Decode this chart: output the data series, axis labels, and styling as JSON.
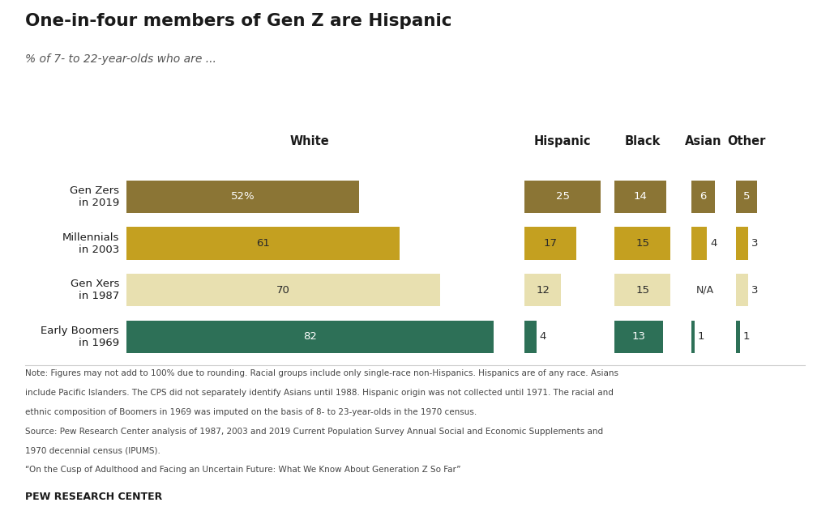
{
  "title": "One-in-four members of Gen Z are Hispanic",
  "subtitle": "% of 7- to 22-year-olds who are ...",
  "generations": [
    "Gen Zers\nin 2019",
    "Millennials\nin 2003",
    "Gen Xers\nin 1987",
    "Early Boomers\nin 1969"
  ],
  "values": {
    "Gen Zers\nin 2019": [
      52,
      25,
      14,
      6,
      5
    ],
    "Millennials\nin 2003": [
      61,
      17,
      15,
      4,
      3
    ],
    "Gen Xers\nin 1987": [
      70,
      12,
      15,
      0,
      3
    ],
    "Early Boomers\nin 1969": [
      82,
      4,
      13,
      1,
      1
    ]
  },
  "labels": {
    "Gen Zers\nin 2019": [
      "52%",
      "25",
      "14",
      "6",
      "5"
    ],
    "Millennials\nin 2003": [
      "61",
      "17",
      "15",
      "4",
      "3"
    ],
    "Gen Xers\nin 1987": [
      "70",
      "12",
      "15",
      "N/A",
      "3"
    ],
    "Early Boomers\nin 1969": [
      "82",
      "4",
      "13",
      "1",
      "1"
    ]
  },
  "bar_colors": {
    "Gen Zers\nin 2019": "#8B7535",
    "Millennials\nin 2003": "#C4A020",
    "Gen Xers\nin 1987": "#E8E0B0",
    "Early Boomers\nin 1969": "#2D7057"
  },
  "text_colors": {
    "Gen Zers\nin 2019": [
      "white",
      "white",
      "white",
      "white",
      "white"
    ],
    "Millennials\nin 2003": [
      "#2a2a2a",
      "#2a2a2a",
      "#2a2a2a",
      "#2a2a2a",
      "#2a2a2a"
    ],
    "Gen Xers\nin 1987": [
      "#2a2a2a",
      "#2a2a2a",
      "#2a2a2a",
      "#2a2a2a",
      "#2a2a2a"
    ],
    "Early Boomers\nin 1969": [
      "white",
      "#2a2a2a",
      "white",
      "#2a2a2a",
      "#2a2a2a"
    ]
  },
  "header_labels": [
    "White",
    "Hispanic",
    "Black",
    "Asian",
    "Other"
  ],
  "note_line1": "Note: Figures may not add to 100% due to rounding. Racial groups include only single-race non-Hispanics. Hispanics are of any race. Asians",
  "note_line2": "include Pacific Islanders. The CPS did not separately identify Asians until 1988. Hispanic origin was not collected until 1971. The racial and",
  "note_line3": "ethnic composition of Boomers in 1969 was imputed on the basis of 8- to 23-year-olds in the 1970 census.",
  "note_line4": "Source: Pew Research Center analysis of 1987, 2003 and 2019 Current Population Survey Annual Social and Economic Supplements and",
  "note_line5": "1970 decennial census (IPUMS).",
  "note_line6": "“On the Cusp of Adulthood and Facing an Uncertain Future: What We Know About Generation Z So Far”",
  "footer": "PEW RESEARCH CENTER",
  "bg": "#FFFFFF"
}
